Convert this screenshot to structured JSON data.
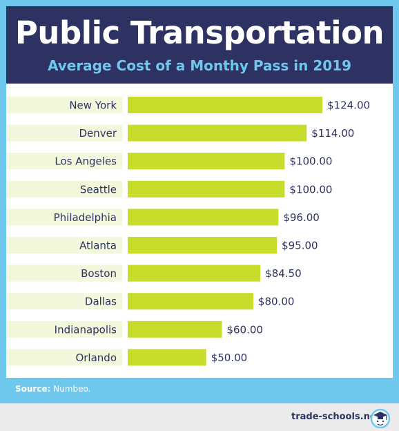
{
  "header": {
    "title": "Public Transportation",
    "subtitle": "Average Cost of a Monthy Pass in 2019"
  },
  "footer": {
    "source_label": "Source:",
    "source_value": "Numbeo.",
    "brand": "trade-schools.net",
    "logo_icon": "graduation-cap-face-icon"
  },
  "colors": {
    "header_bg": "#2e3262",
    "accent_blue": "#6ec8ee",
    "bar": "#c8dc2c",
    "label_band": "#f3f7dc",
    "text_dark": "#2e3262"
  },
  "chart_data": {
    "type": "bar",
    "orientation": "horizontal",
    "title": "Public Transportation",
    "subtitle": "Average Cost of a Monthy Pass in 2019",
    "categories": [
      "New York",
      "Denver",
      "Los Angeles",
      "Seattle",
      "Philadelphia",
      "Atlanta",
      "Boston",
      "Dallas",
      "Indianapolis",
      "Orlando"
    ],
    "values": [
      124,
      114,
      100,
      100,
      96,
      95,
      84.5,
      80,
      60,
      50
    ],
    "value_labels": [
      "$124.00",
      "$114.00",
      "$100.00",
      "$100.00",
      "$96.00",
      "$95.00",
      "$84.50",
      "$80.00",
      "$60.00",
      "$50.00"
    ],
    "xlim": [
      0,
      124
    ],
    "grid": false,
    "legend": "none"
  }
}
